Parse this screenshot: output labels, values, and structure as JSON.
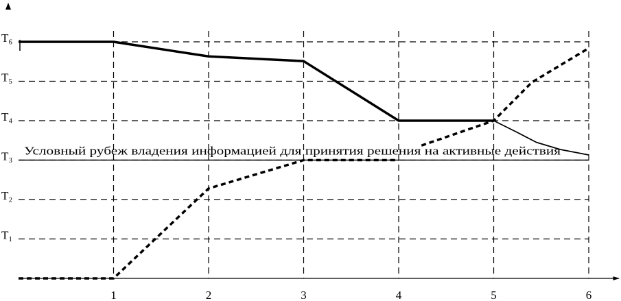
{
  "chart_data": {
    "type": "line",
    "xlim": [
      0,
      6
    ],
    "xticks": [
      1,
      2,
      3,
      4,
      5,
      6
    ],
    "ylim": [
      0,
      6
    ],
    "yticks": [
      {
        "value": 1,
        "label": "T₁"
      },
      {
        "value": 2,
        "label": "T₂"
      },
      {
        "value": 3,
        "label": "T₃"
      },
      {
        "value": 4,
        "label": "T₄"
      },
      {
        "value": 5,
        "label": "T₅"
      },
      {
        "value": 6,
        "label": "T₆"
      }
    ],
    "grid": true,
    "series": [
      {
        "color": "#000000",
        "style": "solid",
        "width": 3.5,
        "x": [
          0,
          1,
          2,
          3,
          4,
          5
        ],
        "values": [
          6,
          6,
          5.63,
          5.51,
          4,
          4
        ]
      },
      {
        "color": "#000000",
        "style": "solid",
        "width": 1.8,
        "x": [
          5,
          5.25,
          5.45,
          5.7,
          6
        ],
        "values": [
          4,
          3.7,
          3.45,
          3.27,
          3.13
        ]
      },
      {
        "color": "#000000",
        "style": "dashed",
        "width": 3.5,
        "x": [
          0,
          1,
          2,
          3,
          4,
          4.1,
          4.24,
          5,
          5.4,
          6
        ],
        "values": [
          0,
          0,
          2.28,
          3,
          3,
          null,
          3.37,
          4,
          4.97,
          5.84
        ]
      }
    ],
    "reference_line": {
      "value": 3,
      "label": "Условный рубеж владения  информацией для принятия  решения на активные    действия"
    }
  }
}
